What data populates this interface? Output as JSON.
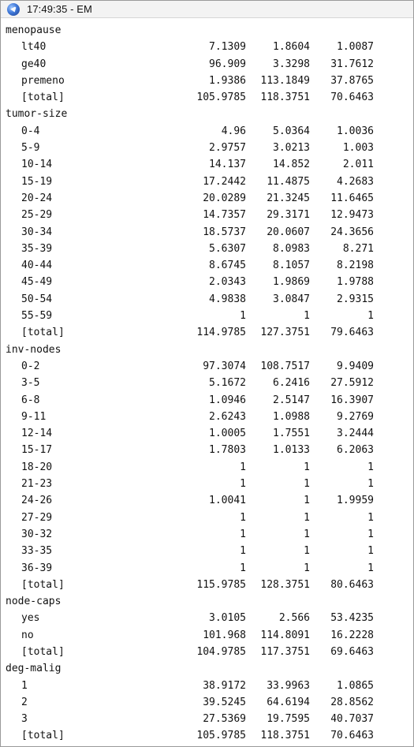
{
  "window": {
    "title": "17:49:35 - EM",
    "icon": "app-globe-icon"
  },
  "sections": [
    {
      "name": "menopause",
      "rows": [
        {
          "label": "lt40",
          "values": [
            "7.1309",
            "1.8604",
            "1.0087"
          ]
        },
        {
          "label": "ge40",
          "values": [
            "96.909",
            "3.3298",
            "31.7612"
          ]
        },
        {
          "label": "premeno",
          "values": [
            "1.9386",
            "113.1849",
            "37.8765"
          ]
        },
        {
          "label": "[total]",
          "values": [
            "105.9785",
            "118.3751",
            "70.6463"
          ]
        }
      ]
    },
    {
      "name": "tumor-size",
      "rows": [
        {
          "label": "0-4",
          "values": [
            "4.96",
            "5.0364",
            "1.0036"
          ]
        },
        {
          "label": "5-9",
          "values": [
            "2.9757",
            "3.0213",
            "1.003"
          ]
        },
        {
          "label": "10-14",
          "values": [
            "14.137",
            "14.852",
            "2.011"
          ]
        },
        {
          "label": "15-19",
          "values": [
            "17.2442",
            "11.4875",
            "4.2683"
          ]
        },
        {
          "label": "20-24",
          "values": [
            "20.0289",
            "21.3245",
            "11.6465"
          ]
        },
        {
          "label": "25-29",
          "values": [
            "14.7357",
            "29.3171",
            "12.9473"
          ]
        },
        {
          "label": "30-34",
          "values": [
            "18.5737",
            "20.0607",
            "24.3656"
          ]
        },
        {
          "label": "35-39",
          "values": [
            "5.6307",
            "8.0983",
            "8.271"
          ]
        },
        {
          "label": "40-44",
          "values": [
            "8.6745",
            "8.1057",
            "8.2198"
          ]
        },
        {
          "label": "45-49",
          "values": [
            "2.0343",
            "1.9869",
            "1.9788"
          ]
        },
        {
          "label": "50-54",
          "values": [
            "4.9838",
            "3.0847",
            "2.9315"
          ]
        },
        {
          "label": "55-59",
          "values": [
            "1",
            "1",
            "1"
          ]
        },
        {
          "label": "[total]",
          "values": [
            "114.9785",
            "127.3751",
            "79.6463"
          ]
        }
      ]
    },
    {
      "name": "inv-nodes",
      "rows": [
        {
          "label": "0-2",
          "values": [
            "97.3074",
            "108.7517",
            "9.9409"
          ]
        },
        {
          "label": "3-5",
          "values": [
            "5.1672",
            "6.2416",
            "27.5912"
          ]
        },
        {
          "label": "6-8",
          "values": [
            "1.0946",
            "2.5147",
            "16.3907"
          ]
        },
        {
          "label": "9-11",
          "values": [
            "2.6243",
            "1.0988",
            "9.2769"
          ]
        },
        {
          "label": "12-14",
          "values": [
            "1.0005",
            "1.7551",
            "3.2444"
          ]
        },
        {
          "label": "15-17",
          "values": [
            "1.7803",
            "1.0133",
            "6.2063"
          ]
        },
        {
          "label": "18-20",
          "values": [
            "1",
            "1",
            "1"
          ]
        },
        {
          "label": "21-23",
          "values": [
            "1",
            "1",
            "1"
          ]
        },
        {
          "label": "24-26",
          "values": [
            "1.0041",
            "1",
            "1.9959"
          ]
        },
        {
          "label": "27-29",
          "values": [
            "1",
            "1",
            "1"
          ]
        },
        {
          "label": "30-32",
          "values": [
            "1",
            "1",
            "1"
          ]
        },
        {
          "label": "33-35",
          "values": [
            "1",
            "1",
            "1"
          ]
        },
        {
          "label": "36-39",
          "values": [
            "1",
            "1",
            "1"
          ]
        },
        {
          "label": "[total]",
          "values": [
            "115.9785",
            "128.3751",
            "80.6463"
          ]
        }
      ]
    },
    {
      "name": "node-caps",
      "rows": [
        {
          "label": "yes",
          "values": [
            "3.0105",
            "2.566",
            "53.4235"
          ]
        },
        {
          "label": "no",
          "values": [
            "101.968",
            "114.8091",
            "16.2228"
          ]
        },
        {
          "label": "[total]",
          "values": [
            "104.9785",
            "117.3751",
            "69.6463"
          ]
        }
      ]
    },
    {
      "name": "deg-malig",
      "rows": [
        {
          "label": "1",
          "values": [
            "38.9172",
            "33.9963",
            "1.0865"
          ]
        },
        {
          "label": "2",
          "values": [
            "39.5245",
            "64.6194",
            "28.8562"
          ]
        },
        {
          "label": "3",
          "values": [
            "27.5369",
            "19.7595",
            "40.7037"
          ]
        },
        {
          "label": "[total]",
          "values": [
            "105.9785",
            "118.3751",
            "70.6463"
          ]
        }
      ]
    }
  ]
}
